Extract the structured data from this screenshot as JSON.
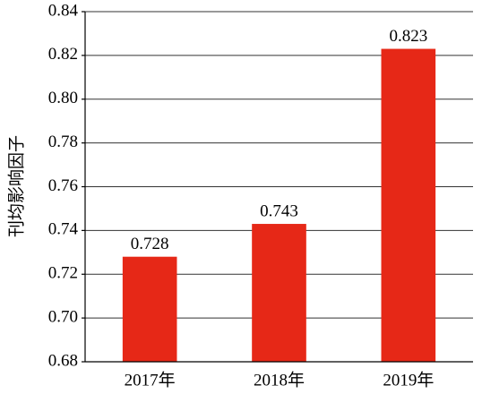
{
  "chart_data": {
    "type": "bar",
    "y_label": "刊均影响因子",
    "categories": [
      "2017年",
      "2018年",
      "2019年"
    ],
    "values": [
      0.728,
      0.743,
      0.823
    ],
    "color": "#e62817",
    "ylim": [
      0.68,
      0.84
    ],
    "yticks": [
      0.68,
      {
        "value": 0.7,
        "label": "0.70"
      },
      0.72,
      0.74,
      0.76,
      0.78,
      {
        "value": 0.8,
        "label": "0.80"
      },
      0.82,
      0.84
    ],
    "grid": true
  }
}
